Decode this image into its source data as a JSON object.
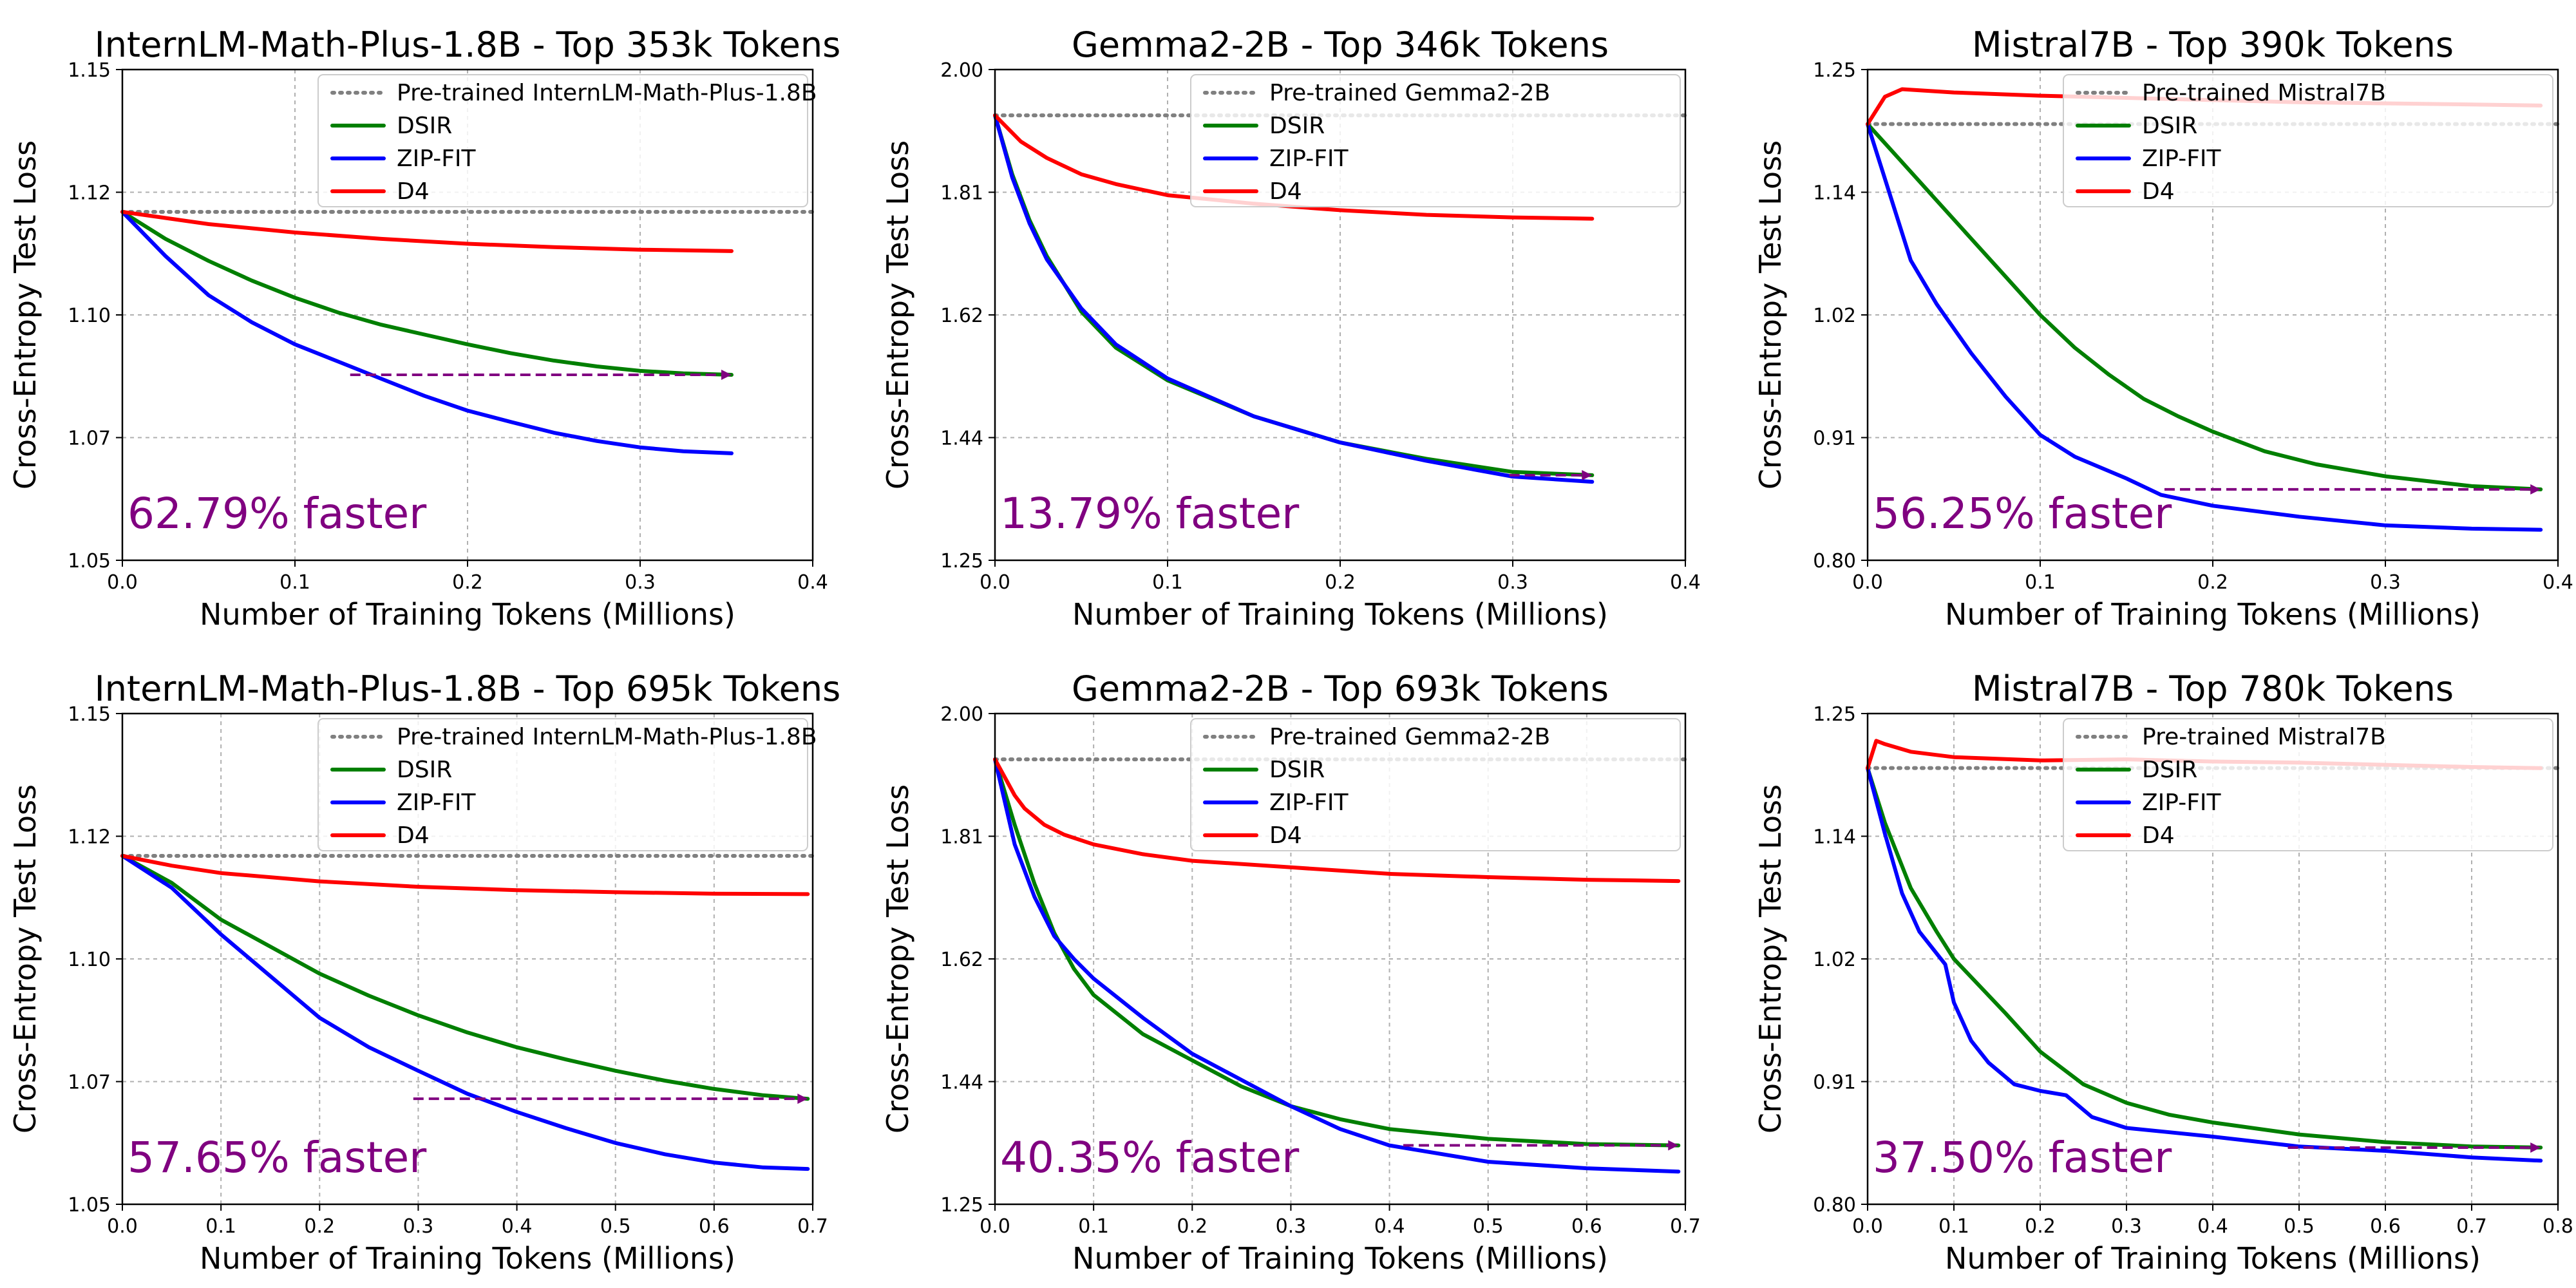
{
  "colors": {
    "pretrained": "#808080",
    "dsir": "#007f00",
    "zipfit": "#0000ff",
    "d4": "#ff0000",
    "annotation": "#800080"
  },
  "chart_data": [
    {
      "type": "line",
      "title": "InternLM-Math-Plus-1.8B - Top 353k Tokens",
      "xlabel": "Number of Training Tokens (Millions)",
      "ylabel": "Cross-Entropy Test Loss",
      "xlim": [
        0,
        0.4
      ],
      "ylim": [
        1.05,
        1.15
      ],
      "xticks": [
        0.0,
        0.1,
        0.2,
        0.3,
        0.4
      ],
      "xtick_labels": [
        "0.0",
        "0.1",
        "0.2",
        "0.3",
        "0.4"
      ],
      "ytick_labels": [
        "1.05",
        "1.07",
        "1.10",
        "1.12",
        "1.15"
      ],
      "grid": true,
      "legend_position": "top-right",
      "baseline": {
        "name": "Pre-trained InternLM-Math-Plus-1.8B",
        "value": 1.121
      },
      "series": [
        {
          "name": "DSIR",
          "x": [
            0,
            0.025,
            0.05,
            0.075,
            0.1,
            0.125,
            0.15,
            0.175,
            0.2,
            0.225,
            0.25,
            0.275,
            0.3,
            0.325,
            0.353
          ],
          "y": [
            1.121,
            1.1155,
            1.111,
            1.107,
            1.1035,
            1.1005,
            1.098,
            1.096,
            1.094,
            1.0922,
            1.0907,
            1.0895,
            1.0886,
            1.0881,
            1.0878
          ]
        },
        {
          "name": "ZIP-FIT",
          "x": [
            0,
            0.025,
            0.05,
            0.075,
            0.1,
            0.125,
            0.15,
            0.175,
            0.2,
            0.225,
            0.25,
            0.275,
            0.3,
            0.325,
            0.353
          ],
          "y": [
            1.121,
            1.112,
            1.104,
            1.0985,
            1.094,
            1.0905,
            1.087,
            1.0835,
            1.0805,
            1.0782,
            1.076,
            1.0743,
            1.073,
            1.0722,
            1.0718
          ]
        },
        {
          "name": "D4",
          "x": [
            0,
            0.05,
            0.1,
            0.15,
            0.2,
            0.25,
            0.3,
            0.353
          ],
          "y": [
            1.121,
            1.1185,
            1.1168,
            1.1155,
            1.1145,
            1.1138,
            1.1133,
            1.113
          ]
        }
      ],
      "speedup": {
        "from_x": 0.132,
        "to_x": 0.353,
        "y": 1.0878
      },
      "annotation": "62.79% faster"
    },
    {
      "type": "line",
      "title": "Gemma2-2B - Top 346k Tokens",
      "xlabel": "Number of Training Tokens (Millions)",
      "ylabel": "Cross-Entropy Test Loss",
      "xlim": [
        0,
        0.4
      ],
      "ylim": [
        1.25,
        2.0
      ],
      "xticks": [
        0.0,
        0.1,
        0.2,
        0.3,
        0.4
      ],
      "xtick_labels": [
        "0.0",
        "0.1",
        "0.2",
        "0.3",
        "0.4"
      ],
      "ytick_labels": [
        "1.25",
        "1.44",
        "1.62",
        "1.81",
        "2.00"
      ],
      "grid": true,
      "legend_position": "top-right",
      "baseline": {
        "name": "Pre-trained Gemma2-2B",
        "value": 1.93
      },
      "series": [
        {
          "name": "DSIR",
          "x": [
            0,
            0.01,
            0.02,
            0.03,
            0.05,
            0.07,
            0.1,
            0.15,
            0.2,
            0.25,
            0.3,
            0.346
          ],
          "y": [
            1.93,
            1.84,
            1.77,
            1.715,
            1.63,
            1.575,
            1.525,
            1.47,
            1.43,
            1.405,
            1.385,
            1.38
          ]
        },
        {
          "name": "ZIP-FIT",
          "x": [
            0,
            0.01,
            0.02,
            0.03,
            0.05,
            0.07,
            0.1,
            0.15,
            0.2,
            0.25,
            0.3,
            0.346
          ],
          "y": [
            1.93,
            1.835,
            1.765,
            1.71,
            1.635,
            1.58,
            1.528,
            1.47,
            1.43,
            1.402,
            1.378,
            1.37
          ]
        },
        {
          "name": "D4",
          "x": [
            0,
            0.015,
            0.03,
            0.05,
            0.07,
            0.1,
            0.15,
            0.2,
            0.25,
            0.3,
            0.346
          ],
          "y": [
            1.93,
            1.89,
            1.865,
            1.84,
            1.825,
            1.808,
            1.795,
            1.785,
            1.778,
            1.774,
            1.772
          ]
        }
      ],
      "speedup": {
        "from_x": 0.298,
        "to_x": 0.346,
        "y": 1.38
      },
      "annotation": "13.79% faster"
    },
    {
      "type": "line",
      "title": "Mistral7B - Top 390k Tokens",
      "xlabel": "Number of Training Tokens (Millions)",
      "ylabel": "Cross-Entropy Test Loss",
      "xlim": [
        0,
        0.4
      ],
      "ylim": [
        0.8,
        1.25
      ],
      "xticks": [
        0.0,
        0.1,
        0.2,
        0.3,
        0.4
      ],
      "xtick_labels": [
        "0.0",
        "0.1",
        "0.2",
        "0.3",
        "0.4"
      ],
      "ytick_labels": [
        "0.80",
        "0.91",
        "1.02",
        "1.14",
        "1.25"
      ],
      "grid": true,
      "legend_position": "top-right",
      "baseline": {
        "name": "Pre-trained Mistral7B",
        "value": 1.2
      },
      "series": [
        {
          "name": "DSIR",
          "x": [
            0,
            0.02,
            0.04,
            0.06,
            0.08,
            0.1,
            0.12,
            0.14,
            0.16,
            0.18,
            0.2,
            0.23,
            0.26,
            0.3,
            0.35,
            0.39
          ],
          "y": [
            1.2,
            1.165,
            1.13,
            1.095,
            1.06,
            1.025,
            0.995,
            0.97,
            0.948,
            0.932,
            0.918,
            0.9,
            0.888,
            0.877,
            0.868,
            0.865
          ]
        },
        {
          "name": "ZIP-FIT",
          "x": [
            0,
            0.01,
            0.025,
            0.04,
            0.06,
            0.08,
            0.1,
            0.12,
            0.15,
            0.17,
            0.2,
            0.25,
            0.3,
            0.35,
            0.39
          ],
          "y": [
            1.2,
            1.15,
            1.075,
            1.035,
            0.99,
            0.95,
            0.915,
            0.895,
            0.875,
            0.86,
            0.85,
            0.84,
            0.832,
            0.829,
            0.828
          ]
        },
        {
          "name": "D4",
          "x": [
            0,
            0.01,
            0.02,
            0.05,
            0.1,
            0.15,
            0.2,
            0.25,
            0.3,
            0.35,
            0.39
          ],
          "y": [
            1.2,
            1.225,
            1.232,
            1.229,
            1.226,
            1.224,
            1.222,
            1.22,
            1.219,
            1.218,
            1.217
          ]
        }
      ],
      "speedup": {
        "from_x": 0.172,
        "to_x": 0.39,
        "y": 0.865
      },
      "annotation": "56.25% faster"
    },
    {
      "type": "line",
      "title": "InternLM-Math-Plus-1.8B - Top 695k Tokens",
      "xlabel": "Number of Training Tokens (Millions)",
      "ylabel": "Cross-Entropy Test Loss",
      "xlim": [
        0,
        0.7
      ],
      "ylim": [
        1.05,
        1.15
      ],
      "xticks": [
        0.0,
        0.1,
        0.2,
        0.3,
        0.4,
        0.5,
        0.6,
        0.7
      ],
      "xtick_labels": [
        "0.0",
        "0.1",
        "0.2",
        "0.3",
        "0.4",
        "0.5",
        "0.6",
        "0.7"
      ],
      "ytick_labels": [
        "1.05",
        "1.07",
        "1.10",
        "1.12",
        "1.15"
      ],
      "grid": true,
      "legend_position": "top-right",
      "baseline": {
        "name": "Pre-trained InternLM-Math-Plus-1.8B",
        "value": 1.121
      },
      "series": [
        {
          "name": "DSIR",
          "x": [
            0,
            0.05,
            0.1,
            0.15,
            0.2,
            0.25,
            0.3,
            0.35,
            0.4,
            0.45,
            0.5,
            0.55,
            0.6,
            0.65,
            0.695
          ],
          "y": [
            1.121,
            1.1155,
            1.108,
            1.1025,
            1.097,
            1.0925,
            1.0885,
            1.085,
            1.082,
            1.0795,
            1.0772,
            1.0752,
            1.0735,
            1.0722,
            1.0715
          ]
        },
        {
          "name": "ZIP-FIT",
          "x": [
            0,
            0.05,
            0.1,
            0.15,
            0.2,
            0.25,
            0.3,
            0.35,
            0.4,
            0.45,
            0.5,
            0.55,
            0.6,
            0.65,
            0.695
          ],
          "y": [
            1.121,
            1.1145,
            1.105,
            1.0965,
            1.088,
            1.082,
            1.0772,
            1.0725,
            1.0688,
            1.0655,
            1.0625,
            1.0602,
            1.0585,
            1.0575,
            1.0572
          ]
        },
        {
          "name": "D4",
          "x": [
            0,
            0.05,
            0.1,
            0.2,
            0.3,
            0.4,
            0.5,
            0.6,
            0.695
          ],
          "y": [
            1.121,
            1.119,
            1.1175,
            1.1158,
            1.1147,
            1.114,
            1.1136,
            1.1133,
            1.1132
          ]
        }
      ],
      "speedup": {
        "from_x": 0.295,
        "to_x": 0.695,
        "y": 1.0715
      },
      "annotation": "57.65% faster"
    },
    {
      "type": "line",
      "title": "Gemma2-2B - Top 693k Tokens",
      "xlabel": "Number of Training Tokens (Millions)",
      "ylabel": "Cross-Entropy Test Loss",
      "xlim": [
        0,
        0.7
      ],
      "ylim": [
        1.25,
        2.0
      ],
      "xticks": [
        0.0,
        0.1,
        0.2,
        0.3,
        0.4,
        0.5,
        0.6,
        0.7
      ],
      "xtick_labels": [
        "0.0",
        "0.1",
        "0.2",
        "0.3",
        "0.4",
        "0.5",
        "0.6",
        "0.7"
      ],
      "ytick_labels": [
        "1.25",
        "1.44",
        "1.62",
        "1.81",
        "2.00"
      ],
      "grid": true,
      "legend_position": "top-right",
      "baseline": {
        "name": "Pre-trained Gemma2-2B",
        "value": 1.93
      },
      "series": [
        {
          "name": "DSIR",
          "x": [
            0,
            0.02,
            0.04,
            0.06,
            0.08,
            0.1,
            0.15,
            0.2,
            0.25,
            0.3,
            0.35,
            0.4,
            0.5,
            0.6,
            0.693
          ],
          "y": [
            1.93,
            1.83,
            1.74,
            1.665,
            1.61,
            1.57,
            1.51,
            1.47,
            1.43,
            1.4,
            1.38,
            1.365,
            1.35,
            1.342,
            1.34
          ]
        },
        {
          "name": "ZIP-FIT",
          "x": [
            0,
            0.02,
            0.04,
            0.06,
            0.08,
            0.1,
            0.15,
            0.2,
            0.25,
            0.3,
            0.35,
            0.4,
            0.5,
            0.6,
            0.693
          ],
          "y": [
            1.93,
            1.8,
            1.72,
            1.66,
            1.625,
            1.595,
            1.535,
            1.48,
            1.44,
            1.4,
            1.365,
            1.34,
            1.315,
            1.305,
            1.3
          ]
        },
        {
          "name": "D4",
          "x": [
            0,
            0.02,
            0.03,
            0.05,
            0.07,
            0.1,
            0.15,
            0.2,
            0.3,
            0.4,
            0.5,
            0.6,
            0.693
          ],
          "y": [
            1.93,
            1.875,
            1.855,
            1.83,
            1.815,
            1.8,
            1.785,
            1.775,
            1.765,
            1.755,
            1.75,
            1.746,
            1.744
          ]
        }
      ],
      "speedup": {
        "from_x": 0.414,
        "to_x": 0.693,
        "y": 1.34
      },
      "annotation": "40.35% faster"
    },
    {
      "type": "line",
      "title": "Mistral7B - Top 780k Tokens",
      "xlabel": "Number of Training Tokens (Millions)",
      "ylabel": "Cross-Entropy Test Loss",
      "xlim": [
        0,
        0.8
      ],
      "ylim": [
        0.8,
        1.25
      ],
      "xticks": [
        0.0,
        0.1,
        0.2,
        0.3,
        0.4,
        0.5,
        0.6,
        0.7,
        0.8
      ],
      "xtick_labels": [
        "0.0",
        "0.1",
        "0.2",
        "0.3",
        "0.4",
        "0.5",
        "0.6",
        "0.7",
        "0.8"
      ],
      "ytick_labels": [
        "0.80",
        "0.91",
        "1.02",
        "1.14",
        "1.25"
      ],
      "grid": true,
      "legend_position": "top-right",
      "baseline": {
        "name": "Pre-trained Mistral7B",
        "value": 1.2
      },
      "series": [
        {
          "name": "DSIR",
          "x": [
            0,
            0.02,
            0.05,
            0.08,
            0.1,
            0.13,
            0.16,
            0.2,
            0.25,
            0.3,
            0.35,
            0.4,
            0.5,
            0.6,
            0.7,
            0.78
          ],
          "y": [
            1.2,
            1.15,
            1.09,
            1.05,
            1.025,
            1.0,
            0.975,
            0.94,
            0.91,
            0.893,
            0.882,
            0.875,
            0.864,
            0.857,
            0.853,
            0.852
          ]
        },
        {
          "name": "ZIP-FIT",
          "x": [
            0,
            0.02,
            0.04,
            0.06,
            0.09,
            0.1,
            0.12,
            0.14,
            0.17,
            0.2,
            0.23,
            0.26,
            0.3,
            0.35,
            0.4,
            0.5,
            0.6,
            0.7,
            0.78
          ],
          "y": [
            1.2,
            1.14,
            1.085,
            1.05,
            1.02,
            0.985,
            0.95,
            0.93,
            0.91,
            0.904,
            0.9,
            0.88,
            0.87,
            0.866,
            0.862,
            0.853,
            0.849,
            0.843,
            0.84
          ]
        },
        {
          "name": "D4",
          "x": [
            0,
            0.01,
            0.02,
            0.05,
            0.1,
            0.2,
            0.3,
            0.4,
            0.5,
            0.6,
            0.7,
            0.78
          ],
          "y": [
            1.2,
            1.225,
            1.222,
            1.215,
            1.21,
            1.207,
            1.208,
            1.206,
            1.205,
            1.203,
            1.201,
            1.2
          ]
        }
      ],
      "speedup": {
        "from_x": 0.487,
        "to_x": 0.78,
        "y": 0.852
      },
      "annotation": "37.50% faster"
    }
  ]
}
